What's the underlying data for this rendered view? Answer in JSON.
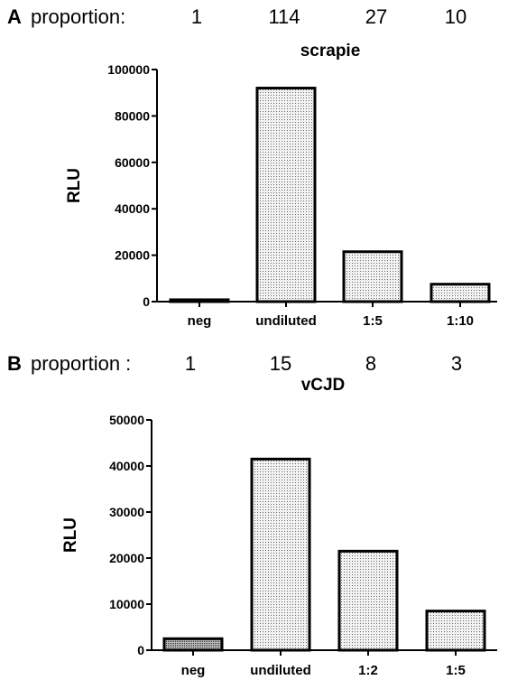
{
  "chart_data": [
    {
      "type": "bar",
      "panel_letter": "A",
      "proportion_label": "proportion:",
      "proportions": [
        "1",
        "114",
        "27",
        "10"
      ],
      "title": "scrapie",
      "ylabel": "RLU",
      "xlabel": "",
      "categories": [
        "neg",
        "undiluted",
        "1:5",
        "1:10"
      ],
      "values": [
        800,
        92000,
        21500,
        7500
      ],
      "ylim": [
        0,
        100000
      ],
      "yticks": [
        "0",
        "20000",
        "40000",
        "60000",
        "80000",
        "100000"
      ],
      "grid": false,
      "bar_fills": [
        "dense-dots",
        "light-dots",
        "light-dots",
        "light-dots"
      ]
    },
    {
      "type": "bar",
      "panel_letter": "B",
      "proportion_label": "proportion :",
      "proportions": [
        "1",
        "15",
        "8",
        "3"
      ],
      "title": "vCJD",
      "ylabel": "RLU",
      "xlabel": "",
      "categories": [
        "neg",
        "undiluted",
        "1:2",
        "1:5"
      ],
      "values": [
        2500,
        41500,
        21500,
        8500
      ],
      "ylim": [
        0,
        50000
      ],
      "yticks": [
        "0",
        "10000",
        "20000",
        "30000",
        "40000",
        "50000"
      ],
      "grid": false,
      "bar_fills": [
        "dense-dots",
        "light-dots",
        "light-dots",
        "light-dots"
      ]
    }
  ]
}
